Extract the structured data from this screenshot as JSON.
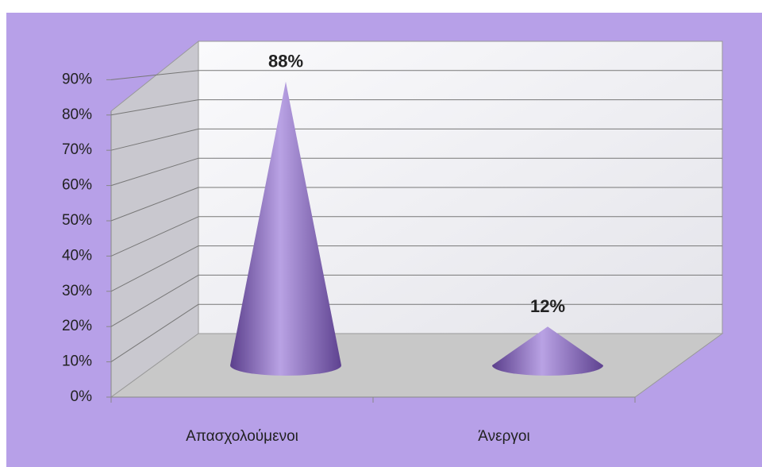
{
  "chart_data": {
    "type": "cone",
    "categories": [
      "Απασχολούμενοι",
      "Άνεργοι"
    ],
    "values": [
      88,
      12
    ],
    "value_labels": [
      "88%",
      "12%"
    ],
    "color": "#8064a2",
    "ylim": [
      0,
      100
    ],
    "yticks": [
      {
        "value": 0,
        "label": "0%"
      },
      {
        "value": 10,
        "label": "10%"
      },
      {
        "value": 20,
        "label": "20%"
      },
      {
        "value": 30,
        "label": "30%"
      },
      {
        "value": 40,
        "label": "40%"
      },
      {
        "value": 50,
        "label": "50%"
      },
      {
        "value": 60,
        "label": "60%"
      },
      {
        "value": 70,
        "label": "70%"
      },
      {
        "value": 80,
        "label": "80%"
      },
      {
        "value": 90,
        "label": "90%"
      }
    ],
    "grid": true
  }
}
